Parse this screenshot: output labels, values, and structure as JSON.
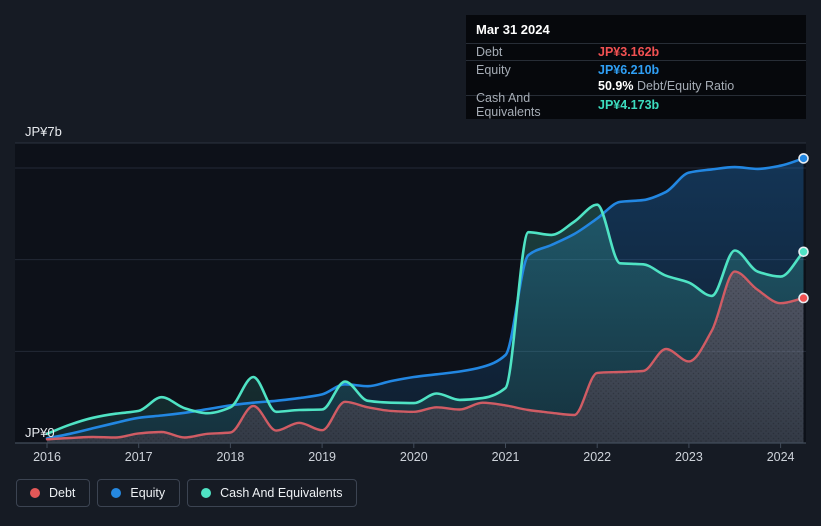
{
  "colors": {
    "background": "#161b24",
    "plot_background": "#0d1119",
    "grid": "#232936",
    "plot_top_border": "#2c3340",
    "axis_line": "#424c5a",
    "tick_label": "#ced3da",
    "y_label": "#e7eaee",
    "debt": "#d05c64",
    "equity": "#2287e2",
    "cash": "#4fe3c4",
    "debt_value": "#f15152",
    "equity_value": "#2f9ff5",
    "cash_value": "#3cdcbe",
    "debt_legend": "#e45858",
    "equity_legend": "#2588e0",
    "cash_legend": "#4fe3c4"
  },
  "tooltip": {
    "date": "Mar 31 2024",
    "rows": [
      {
        "label": "Debt",
        "value": "JP¥3.162b",
        "series": "debt"
      },
      {
        "label": "Equity",
        "value": "JP¥6.210b",
        "series": "equity"
      },
      {
        "label": "Cash And Equivalents",
        "value": "JP¥4.173b",
        "series": "cash"
      }
    ],
    "ratio_value": "50.9%",
    "ratio_label": "Debt/Equity Ratio"
  },
  "y_axis": {
    "top_label": "JP¥7b",
    "bottom_label": "JP¥0"
  },
  "legend": [
    {
      "label": "Debt",
      "series": "debt"
    },
    {
      "label": "Equity",
      "series": "equity"
    },
    {
      "label": "Cash And Equivalents",
      "series": "cash"
    }
  ],
  "chart_data": {
    "type": "area",
    "title": "Debt to Equity History",
    "x_ticks": [
      "2016",
      "2017",
      "2018",
      "2019",
      "2020",
      "2021",
      "2022",
      "2023",
      "2024"
    ],
    "x": [
      2016.0,
      2016.25,
      2016.5,
      2016.75,
      2017.0,
      2017.25,
      2017.5,
      2017.75,
      2018.0,
      2018.25,
      2018.5,
      2018.75,
      2019.0,
      2019.25,
      2019.5,
      2019.75,
      2020.0,
      2020.25,
      2020.5,
      2020.75,
      2021.0,
      2021.25,
      2021.5,
      2021.75,
      2022.0,
      2022.25,
      2022.5,
      2022.75,
      2023.0,
      2023.25,
      2023.5,
      2023.75,
      2024.0,
      2024.25
    ],
    "unit": "JP¥ billions",
    "ylim": [
      0,
      7
    ],
    "grid_values": [
      2,
      4,
      6
    ],
    "legend_position": "bottom-left",
    "series": [
      {
        "name": "Debt",
        "series": "debt",
        "values": [
          0.08,
          0.11,
          0.13,
          0.12,
          0.21,
          0.24,
          0.12,
          0.2,
          0.23,
          0.81,
          0.27,
          0.44,
          0.28,
          0.9,
          0.78,
          0.7,
          0.68,
          0.78,
          0.73,
          0.88,
          0.82,
          0.72,
          0.66,
          0.61,
          1.53,
          1.55,
          1.57,
          2.05,
          1.78,
          2.45,
          3.74,
          3.34,
          3.05,
          3.162
        ]
      },
      {
        "name": "Equity",
        "series": "equity",
        "values": [
          0.1,
          0.2,
          0.32,
          0.44,
          0.55,
          0.6,
          0.66,
          0.74,
          0.82,
          0.88,
          0.92,
          0.98,
          1.06,
          1.28,
          1.24,
          1.35,
          1.44,
          1.5,
          1.56,
          1.66,
          1.92,
          4.1,
          4.32,
          4.56,
          4.9,
          5.26,
          5.3,
          5.48,
          5.9,
          5.97,
          6.02,
          5.98,
          6.05,
          6.21
        ]
      },
      {
        "name": "Cash And Equivalents",
        "series": "cash",
        "values": [
          0.2,
          0.4,
          0.55,
          0.64,
          0.7,
          1.0,
          0.76,
          0.65,
          0.78,
          1.44,
          0.68,
          0.72,
          0.73,
          1.34,
          0.92,
          0.88,
          0.87,
          1.08,
          0.94,
          0.98,
          1.2,
          4.6,
          4.54,
          4.83,
          5.2,
          3.92,
          3.9,
          3.65,
          3.5,
          3.21,
          4.2,
          3.74,
          3.63,
          4.173
        ]
      }
    ]
  }
}
